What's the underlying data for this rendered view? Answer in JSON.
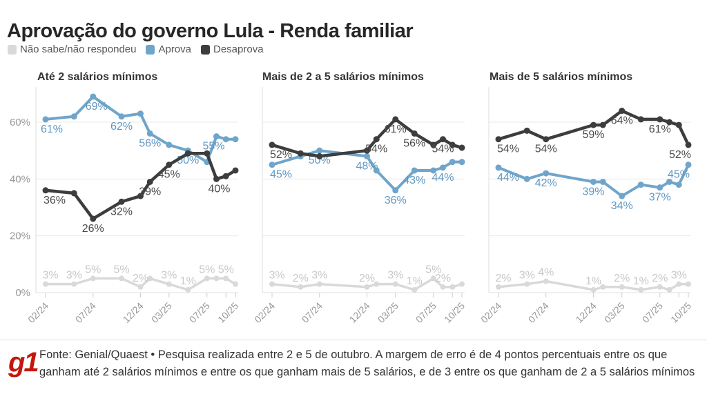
{
  "title": "Aprovação do governo Lula - Renda familiar",
  "legend": {
    "items": [
      {
        "label": "Não sabe/não respondeu",
        "color": "#d9d9d9"
      },
      {
        "label": "Aprova",
        "color": "#6fa5cb"
      },
      {
        "label": "Desaprova",
        "color": "#3d3d3d"
      }
    ]
  },
  "colors": {
    "ns": "#d9d9d9",
    "ns_label": "#c8c8c8",
    "aprova": "#6fa5cb",
    "aprova_label": "#5f97c2",
    "desaprova": "#3d3d3d",
    "desaprova_label": "#4a4a4a",
    "grid": "#e9e9e9",
    "grid_zero": "#e0e0e0",
    "axis_line": "#dddddd",
    "axis_text": "#999999",
    "tick": "#cccccc"
  },
  "y_axis": {
    "ticks": [
      {
        "v": 0,
        "label": "0%"
      },
      {
        "v": 20,
        "label": "20%"
      },
      {
        "v": 40,
        "label": "40%"
      },
      {
        "v": 60,
        "label": "60%"
      }
    ],
    "ylim": [
      0,
      72
    ]
  },
  "x_ticks": [
    {
      "m": 0,
      "label": "02/24"
    },
    {
      "m": 5,
      "label": "07/24"
    },
    {
      "m": 10,
      "label": "12/24"
    },
    {
      "m": 13,
      "label": "03/25"
    },
    {
      "m": 17,
      "label": "07/25"
    },
    {
      "m": 19,
      "label": ""
    },
    {
      "m": 20,
      "label": "10/25"
    }
  ],
  "chart_data": [
    {
      "type": "line",
      "title": "Até 2 salários mínimos",
      "xlabel": "",
      "ylabel": "",
      "x": [
        "02/24",
        "05/24",
        "07/24",
        "10/24",
        "12/24",
        "01/25",
        "03/25",
        "05/25",
        "07/25",
        "08/25",
        "09/25",
        "10/25"
      ],
      "x_month_offset": [
        0,
        3,
        5,
        8,
        10,
        11,
        13,
        15,
        17,
        18,
        19,
        20
      ],
      "series": [
        {
          "name": "Não sabe/não respondeu",
          "color": "#d9d9d9",
          "label_color": "#c8c8c8",
          "width": 3.5,
          "r": 4,
          "label_pos": "above",
          "values": [
            3,
            3,
            5,
            5,
            2,
            5,
            3,
            1,
            5,
            5,
            5,
            3
          ],
          "labels": [
            {
              "i": 0,
              "t": "3%",
              "dx": 7
            },
            {
              "i": 1,
              "t": "3%"
            },
            {
              "i": 2,
              "t": "5%"
            },
            {
              "i": 3,
              "t": "5%"
            },
            {
              "i": 4,
              "t": "2%"
            },
            {
              "i": 6,
              "t": "3%"
            },
            {
              "i": 7,
              "t": "1%"
            },
            {
              "i": 8,
              "t": "5%"
            },
            {
              "i": 10,
              "t": "5%"
            }
          ]
        },
        {
          "name": "Aprova",
          "color": "#6fa5cb",
          "label_color": "#5f97c2",
          "width": 4,
          "r": 4.5,
          "label_pos": "below",
          "values": [
            61,
            62,
            69,
            62,
            63,
            56,
            52,
            50,
            46,
            55,
            54,
            54
          ],
          "labels": [
            {
              "i": 0,
              "t": "61%",
              "dx": 9
            },
            {
              "i": 2,
              "t": "69%",
              "dx": 5
            },
            {
              "i": 3,
              "t": "62%"
            },
            {
              "i": 5,
              "t": "56%"
            },
            {
              "i": 7,
              "t": "50%"
            },
            {
              "i": 9,
              "t": "55%",
              "dx": -4
            }
          ]
        },
        {
          "name": "Desaprova",
          "color": "#3d3d3d",
          "label_color": "#4a4a4a",
          "width": 4.5,
          "r": 4.5,
          "label_pos": "below",
          "values": [
            36,
            35,
            26,
            32,
            34,
            39,
            45,
            49,
            49,
            40,
            41,
            43
          ],
          "labels": [
            {
              "i": 0,
              "t": "36%",
              "dx": 13
            },
            {
              "i": 2,
              "t": "26%"
            },
            {
              "i": 3,
              "t": "32%"
            },
            {
              "i": 5,
              "t": "39%"
            },
            {
              "i": 6,
              "t": "45%"
            },
            {
              "i": 9,
              "t": "40%",
              "dx": 4
            }
          ]
        }
      ]
    },
    {
      "type": "line",
      "title": "Mais de 2 a 5 salários mínimos",
      "xlabel": "",
      "ylabel": "",
      "x": [
        "02/24",
        "05/24",
        "07/24",
        "12/24",
        "01/25",
        "03/25",
        "05/25",
        "07/25",
        "08/25",
        "09/25",
        "10/25"
      ],
      "x_month_offset": [
        0,
        3,
        5,
        10,
        11,
        13,
        15,
        17,
        18,
        19,
        20
      ],
      "series": [
        {
          "name": "Não sabe/não respondeu",
          "color": "#d9d9d9",
          "label_color": "#c8c8c8",
          "width": 3.5,
          "r": 4,
          "label_pos": "above",
          "values": [
            3,
            2,
            3,
            2,
            3,
            3,
            1,
            5,
            2,
            2,
            3
          ],
          "labels": [
            {
              "i": 0,
              "t": "3%",
              "dx": 7
            },
            {
              "i": 1,
              "t": "2%"
            },
            {
              "i": 2,
              "t": "3%"
            },
            {
              "i": 3,
              "t": "2%"
            },
            {
              "i": 5,
              "t": "3%"
            },
            {
              "i": 6,
              "t": "1%"
            },
            {
              "i": 7,
              "t": "5%"
            },
            {
              "i": 8,
              "t": "2%"
            }
          ]
        },
        {
          "name": "Aprova",
          "color": "#6fa5cb",
          "label_color": "#5f97c2",
          "width": 4,
          "r": 4.5,
          "label_pos": "below",
          "values": [
            45,
            48,
            50,
            48,
            43,
            36,
            43,
            43,
            44,
            46,
            46
          ],
          "labels": [
            {
              "i": 0,
              "t": "45%",
              "dx": 13
            },
            {
              "i": 2,
              "t": "50%"
            },
            {
              "i": 3,
              "t": "48%"
            },
            {
              "i": 5,
              "t": "36%"
            },
            {
              "i": 6,
              "t": "43%"
            },
            {
              "i": 8,
              "t": "44%"
            }
          ]
        },
        {
          "name": "Desaprova",
          "color": "#3d3d3d",
          "label_color": "#4a4a4a",
          "width": 4.5,
          "r": 4.5,
          "label_pos": "below",
          "values": [
            52,
            49,
            48,
            50,
            54,
            61,
            56,
            52,
            54,
            52,
            51
          ],
          "labels": [
            {
              "i": 0,
              "t": "52%",
              "dx": 13
            },
            {
              "i": 4,
              "t": "54%"
            },
            {
              "i": 5,
              "t": "61%"
            },
            {
              "i": 6,
              "t": "56%"
            },
            {
              "i": 8,
              "t": "54%"
            }
          ]
        }
      ]
    },
    {
      "type": "line",
      "title": "Mais de 5 salários mínimos",
      "xlabel": "",
      "ylabel": "",
      "x": [
        "02/24",
        "05/24",
        "07/24",
        "12/24",
        "01/25",
        "03/25",
        "05/25",
        "07/25",
        "08/25",
        "09/25",
        "10/25"
      ],
      "x_month_offset": [
        0,
        3,
        5,
        10,
        11,
        13,
        15,
        17,
        18,
        19,
        20
      ],
      "series": [
        {
          "name": "Não sabe/não respondeu",
          "color": "#d9d9d9",
          "label_color": "#c8c8c8",
          "width": 3.5,
          "r": 4,
          "label_pos": "above",
          "values": [
            2,
            3,
            4,
            1,
            2,
            2,
            1,
            2,
            1,
            3,
            3
          ],
          "labels": [
            {
              "i": 0,
              "t": "2%",
              "dx": 7
            },
            {
              "i": 1,
              "t": "3%"
            },
            {
              "i": 2,
              "t": "4%"
            },
            {
              "i": 3,
              "t": "1%"
            },
            {
              "i": 5,
              "t": "2%"
            },
            {
              "i": 6,
              "t": "1%"
            },
            {
              "i": 7,
              "t": "2%"
            },
            {
              "i": 9,
              "t": "3%"
            }
          ]
        },
        {
          "name": "Aprova",
          "color": "#6fa5cb",
          "label_color": "#5f97c2",
          "width": 4,
          "r": 4.5,
          "label_pos": "below",
          "values": [
            44,
            40,
            42,
            39,
            39,
            34,
            38,
            37,
            39,
            38,
            45
          ],
          "labels": [
            {
              "i": 0,
              "t": "44%",
              "dx": 14
            },
            {
              "i": 2,
              "t": "42%"
            },
            {
              "i": 3,
              "t": "39%"
            },
            {
              "i": 5,
              "t": "34%"
            },
            {
              "i": 7,
              "t": "37%"
            },
            {
              "i": 10,
              "t": "45%",
              "dx": -14
            }
          ]
        },
        {
          "name": "Desaprova",
          "color": "#3d3d3d",
          "label_color": "#4a4a4a",
          "width": 4.5,
          "r": 4.5,
          "label_pos": "below",
          "values": [
            54,
            57,
            54,
            59,
            59,
            64,
            61,
            61,
            60,
            59,
            52
          ],
          "labels": [
            {
              "i": 0,
              "t": "54%",
              "dx": 14
            },
            {
              "i": 2,
              "t": "54%"
            },
            {
              "i": 3,
              "t": "59%"
            },
            {
              "i": 5,
              "t": "64%"
            },
            {
              "i": 7,
              "t": "61%"
            },
            {
              "i": 10,
              "t": "52%",
              "dx": -12
            }
          ]
        }
      ]
    }
  ],
  "footer": {
    "logo": "g1",
    "text": "Fonte: Genial/Quaest • Pesquisa realizada entre 2 e 5 de outubro. A margem de erro é de 4 pontos percentuais entre os que ganham até 2 salários mínimos e entre os que ganham mais de 5 salários, e de 3 entre os que ganham de 2 a 5 salários mínimos"
  }
}
